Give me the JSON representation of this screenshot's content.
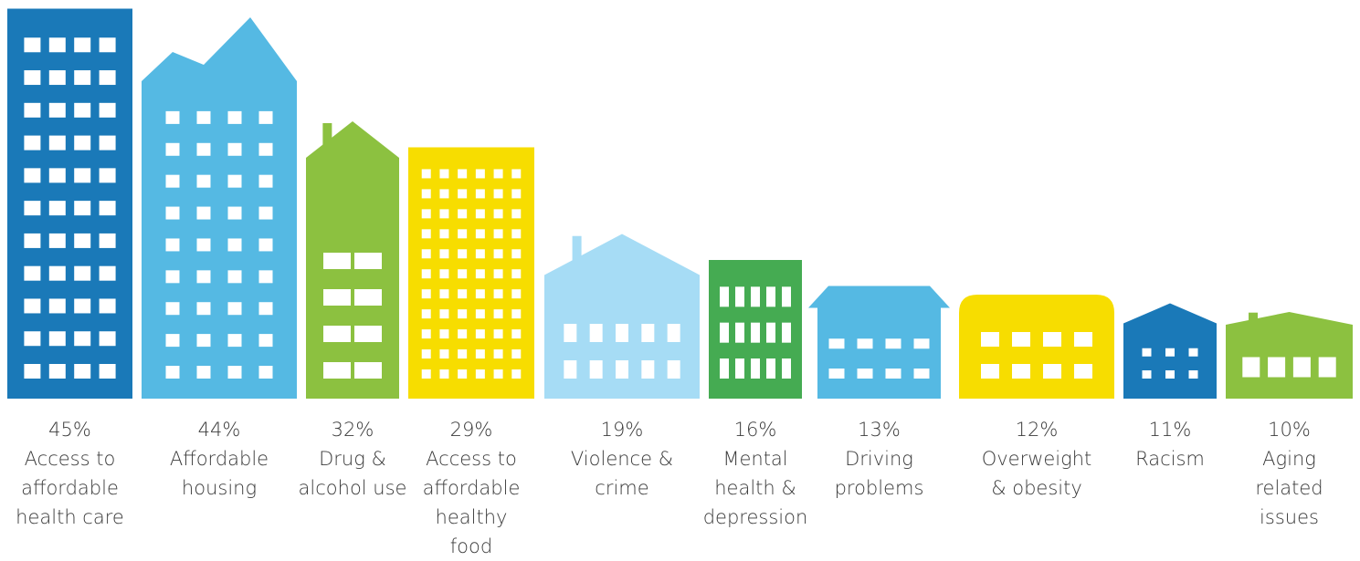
{
  "chart_data": {
    "type": "building-bar",
    "categories": [
      "Access to affordable health care",
      "Affordable housing",
      "Drug & alcohol use",
      "Access to affordable healthy food",
      "Violence & crime",
      "Mental health & depression",
      "Driving problems",
      "Overweight & obesity",
      "Racism",
      "Aging related issues"
    ],
    "values": [
      45,
      44,
      32,
      29,
      19,
      16,
      13,
      12,
      11,
      10
    ],
    "value_labels": [
      "45%",
      "44%",
      "32%",
      "29%",
      "19%",
      "16%",
      "13%",
      "12%",
      "11%",
      "10%"
    ],
    "colors": [
      "#1a79b8",
      "#55b9e3",
      "#8cc140",
      "#f7dd00",
      "#a6dcf5",
      "#45ab52",
      "#55b9e3",
      "#f7dd00",
      "#1a79b8",
      "#8cc140"
    ]
  }
}
